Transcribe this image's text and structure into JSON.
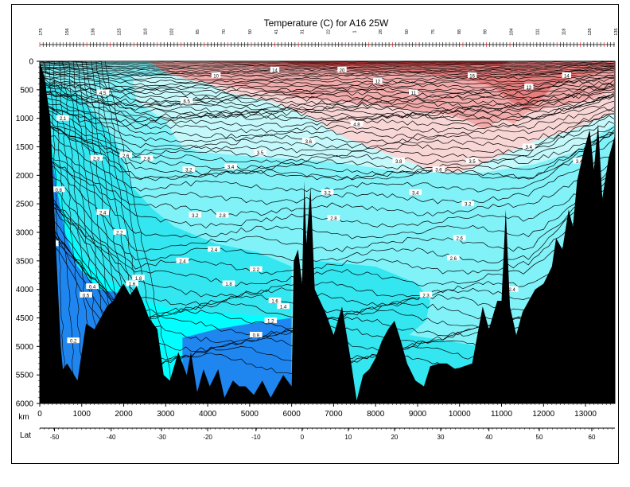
{
  "chart_data": {
    "type": "heatmap",
    "title": "Temperature (C) for A16 25W",
    "xlabel": "km",
    "xlabel2": "Lat",
    "xlim": [
      0,
      13700
    ],
    "ylim": [
      6000,
      0
    ],
    "x_ticks": [
      0,
      1000,
      2000,
      3000,
      4000,
      5000,
      6000,
      7000,
      8000,
      9000,
      10000,
      11000,
      12000,
      13000
    ],
    "y_ticks": [
      0,
      500,
      1000,
      1500,
      2000,
      2500,
      3000,
      3500,
      4000,
      4500,
      5000,
      5500,
      6000
    ],
    "lat_ticks": [
      {
        "km": 350,
        "label": "-50"
      },
      {
        "km": 1700,
        "label": "-40"
      },
      {
        "km": 2900,
        "label": "-30"
      },
      {
        "km": 4000,
        "label": "-20"
      },
      {
        "km": 5150,
        "label": "-10"
      },
      {
        "km": 6250,
        "label": "0"
      },
      {
        "km": 7350,
        "label": "10"
      },
      {
        "km": 8450,
        "label": "20"
      },
      {
        "km": 9550,
        "label": "30"
      },
      {
        "km": 10700,
        "label": "40"
      },
      {
        "km": 11900,
        "label": "50"
      },
      {
        "km": 13150,
        "label": "60"
      }
    ],
    "color_bands": [
      {
        "name": "deep-blue",
        "range": "< 0.8",
        "color": "#1f86f0"
      },
      {
        "name": "bright-cyan",
        "range": "0.8 - 1.2",
        "color": "#00ffff"
      },
      {
        "name": "medium-cyan",
        "range": "1.2 - 2.4",
        "color": "#33e6f0"
      },
      {
        "name": "light-cyan",
        "range": "2.4 - 3.6",
        "color": "#80f2f8"
      },
      {
        "name": "pale-cyan",
        "range": "3.6 - 4.0",
        "color": "#c4f8fa"
      },
      {
        "name": "pale-pink",
        "range": "4 - 6",
        "color": "#f9d6d6"
      },
      {
        "name": "pink",
        "range": "6 - 10",
        "color": "#f2aaaa"
      },
      {
        "name": "salmon",
        "range": "10 - 14",
        "color": "#e67e7e"
      },
      {
        "name": "red",
        "range": "> 14",
        "color": "#cc3b3b"
      }
    ],
    "bottom_profile": [
      [
        0,
        0
      ],
      [
        100,
        250
      ],
      [
        250,
        1000
      ],
      [
        400,
        3500
      ],
      [
        500,
        5000
      ],
      [
        550,
        5400
      ],
      [
        650,
        5300
      ],
      [
        900,
        5600
      ],
      [
        1100,
        4600
      ],
      [
        1300,
        4700
      ],
      [
        1600,
        4300
      ],
      [
        1750,
        4200
      ],
      [
        1900,
        4000
      ],
      [
        2000,
        3900
      ],
      [
        2150,
        4100
      ],
      [
        2300,
        3950
      ],
      [
        2450,
        4200
      ],
      [
        2600,
        4500
      ],
      [
        2800,
        4700
      ],
      [
        2950,
        5500
      ],
      [
        3100,
        5600
      ],
      [
        3300,
        5100
      ],
      [
        3500,
        5500
      ],
      [
        3600,
        5100
      ],
      [
        3750,
        5800
      ],
      [
        3900,
        5400
      ],
      [
        4050,
        5700
      ],
      [
        4250,
        5400
      ],
      [
        4400,
        5900
      ],
      [
        4600,
        5600
      ],
      [
        4750,
        5700
      ],
      [
        4900,
        5700
      ],
      [
        5100,
        5850
      ],
      [
        5300,
        5600
      ],
      [
        5500,
        5900
      ],
      [
        5800,
        5500
      ],
      [
        6000,
        5700
      ],
      [
        6050,
        3500
      ],
      [
        6150,
        3300
      ],
      [
        6250,
        3900
      ],
      [
        6300,
        2100
      ],
      [
        6350,
        3200
      ],
      [
        6450,
        2200
      ],
      [
        6550,
        4000
      ],
      [
        6800,
        4400
      ],
      [
        7000,
        4800
      ],
      [
        7200,
        4300
      ],
      [
        7400,
        5200
      ],
      [
        7550,
        5950
      ],
      [
        7700,
        5500
      ],
      [
        7850,
        5400
      ],
      [
        8000,
        5200
      ],
      [
        8150,
        4900
      ],
      [
        8300,
        4700
      ],
      [
        8450,
        4550
      ],
      [
        8600,
        4900
      ],
      [
        8750,
        5300
      ],
      [
        8950,
        5600
      ],
      [
        9150,
        5700
      ],
      [
        9300,
        5350
      ],
      [
        9500,
        5300
      ],
      [
        9700,
        5300
      ],
      [
        9900,
        5400
      ],
      [
        10100,
        5350
      ],
      [
        10300,
        5300
      ],
      [
        10450,
        4700
      ],
      [
        10550,
        4300
      ],
      [
        10700,
        4700
      ],
      [
        10900,
        4200
      ],
      [
        11000,
        4200
      ],
      [
        11100,
        2600
      ],
      [
        11200,
        4300
      ],
      [
        11350,
        4800
      ],
      [
        11500,
        4400
      ],
      [
        11650,
        4200
      ],
      [
        11800,
        4000
      ],
      [
        12000,
        3900
      ],
      [
        12200,
        3600
      ],
      [
        12300,
        3100
      ],
      [
        12450,
        3300
      ],
      [
        12600,
        2600
      ],
      [
        12700,
        2900
      ],
      [
        12800,
        2100
      ],
      [
        12950,
        1600
      ],
      [
        13100,
        1200
      ],
      [
        13200,
        1900
      ],
      [
        13300,
        1100
      ],
      [
        13400,
        2400
      ],
      [
        13550,
        1700
      ],
      [
        13700,
        1300
      ]
    ],
    "contour_labels": [
      {
        "x": 1350,
        "y": 1700,
        "t": "2.3"
      },
      {
        "x": 2050,
        "y": 1650,
        "t": "2.6"
      },
      {
        "x": 2550,
        "y": 1700,
        "t": "2.8"
      },
      {
        "x": 3550,
        "y": 1900,
        "t": "3.2"
      },
      {
        "x": 4550,
        "y": 1850,
        "t": "3.4"
      },
      {
        "x": 5250,
        "y": 1600,
        "t": "3.5"
      },
      {
        "x": 6400,
        "y": 1400,
        "t": "3.6"
      },
      {
        "x": 8550,
        "y": 1750,
        "t": "3.8"
      },
      {
        "x": 9500,
        "y": 1900,
        "t": "3.6"
      },
      {
        "x": 3700,
        "y": 2700,
        "t": "3.2"
      },
      {
        "x": 4350,
        "y": 2700,
        "t": "2.8"
      },
      {
        "x": 6850,
        "y": 2300,
        "t": "3.2"
      },
      {
        "x": 8950,
        "y": 2300,
        "t": "3.4"
      },
      {
        "x": 10200,
        "y": 2500,
        "t": "3.2"
      },
      {
        "x": 7000,
        "y": 2750,
        "t": "2.8"
      },
      {
        "x": 10000,
        "y": 3100,
        "t": "2.6"
      },
      {
        "x": 4150,
        "y": 3300,
        "t": "2.4"
      },
      {
        "x": 9850,
        "y": 3450,
        "t": "2.6"
      },
      {
        "x": 3400,
        "y": 3500,
        "t": "2.4"
      },
      {
        "x": 5150,
        "y": 3650,
        "t": "2.2"
      },
      {
        "x": 4500,
        "y": 3900,
        "t": "1.8"
      },
      {
        "x": 5600,
        "y": 4200,
        "t": "1.6"
      },
      {
        "x": 5800,
        "y": 4300,
        "t": "1.4"
      },
      {
        "x": 5500,
        "y": 4550,
        "t": "1.2"
      },
      {
        "x": 5150,
        "y": 4800,
        "t": "0.9"
      },
      {
        "x": 9200,
        "y": 4100,
        "t": "2.3"
      },
      {
        "x": 2350,
        "y": 3800,
        "t": "1.8"
      },
      {
        "x": 2200,
        "y": 3900,
        "t": "1.6"
      },
      {
        "x": 1100,
        "y": 4100,
        "t": "0.5"
      },
      {
        "x": 1250,
        "y": 3950,
        "t": "0.4"
      },
      {
        "x": 800,
        "y": 4900,
        "t": "0.2"
      },
      {
        "x": 300,
        "y": 3200,
        "t": "0.2"
      },
      {
        "x": 200,
        "y": 2650,
        "t": "0.3"
      },
      {
        "x": 450,
        "y": 2250,
        "t": "0.8"
      },
      {
        "x": 1500,
        "y": 2650,
        "t": "2.4"
      },
      {
        "x": 1900,
        "y": 3000,
        "t": "2.2"
      },
      {
        "x": 550,
        "y": 1000,
        "t": "2.1"
      },
      {
        "x": 1500,
        "y": 550,
        "t": "4.5"
      },
      {
        "x": 3500,
        "y": 700,
        "t": "6.5"
      },
      {
        "x": 4200,
        "y": 250,
        "t": "10"
      },
      {
        "x": 5600,
        "y": 150,
        "t": "14"
      },
      {
        "x": 7200,
        "y": 150,
        "t": "20"
      },
      {
        "x": 8050,
        "y": 350,
        "t": "12"
      },
      {
        "x": 8900,
        "y": 550,
        "t": "11"
      },
      {
        "x": 10300,
        "y": 250,
        "t": "16"
      },
      {
        "x": 11650,
        "y": 450,
        "t": "13"
      },
      {
        "x": 12550,
        "y": 250,
        "t": "14"
      },
      {
        "x": 7550,
        "y": 1100,
        "t": "4.8"
      },
      {
        "x": 10300,
        "y": 1750,
        "t": "3.5"
      },
      {
        "x": 11250,
        "y": 4000,
        "t": "2.4"
      },
      {
        "x": 11650,
        "y": 1500,
        "t": "3.4"
      },
      {
        "x": 12850,
        "y": 1750,
        "t": "3.4"
      }
    ]
  },
  "top_axis": {
    "station_labels": [
      "175",
      "156",
      "136",
      "125",
      "110",
      "102",
      "85",
      "70",
      "50",
      "41",
      "31",
      "22",
      "1",
      "28",
      "50",
      "75",
      "88",
      "98",
      "104",
      "111",
      "118",
      "126",
      "135"
    ]
  }
}
